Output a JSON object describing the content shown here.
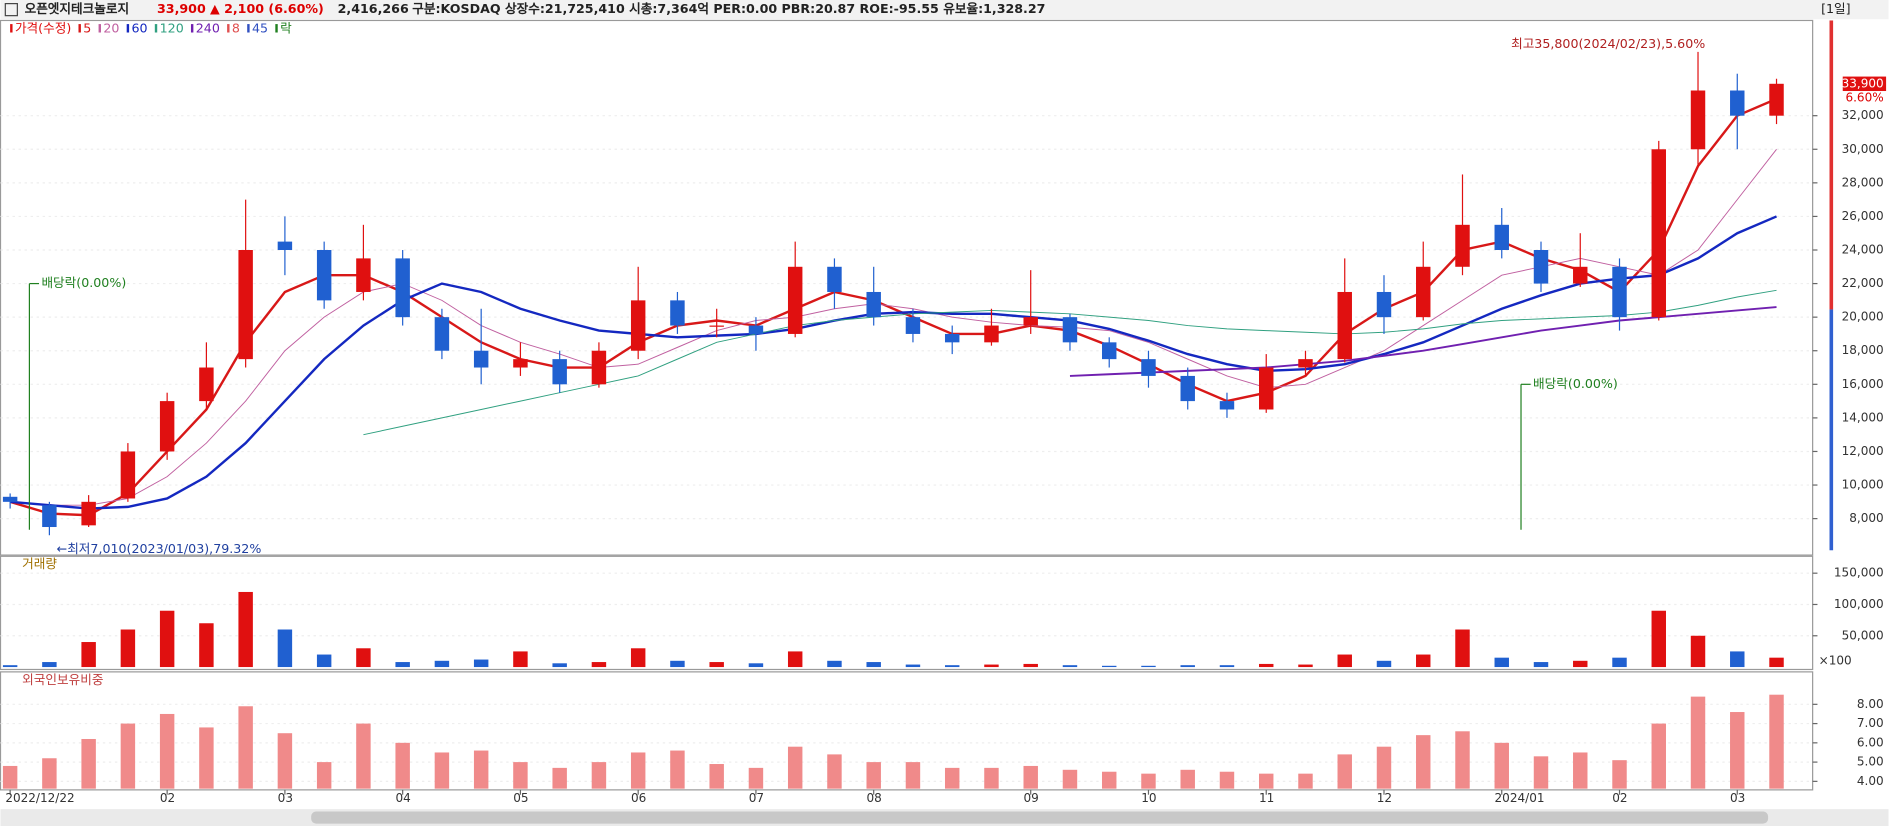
{
  "header": {
    "name": "오픈엣지테크놀로지",
    "price": "33,900",
    "change": "▲ 2,100 (6.60%)",
    "volume": "2,416,266",
    "info": "구분:KOSDAQ 상장수:21,725,410 시총:7,364억 PER:0.00 PBR:20.87 ROE:-95.55 유보율:1,328.27",
    "period": "[1일]"
  },
  "chart_data": {
    "type": "candlestick",
    "price_label": "가격(수정)",
    "extra_legend": [
      {
        "name": "8",
        "color": "#e05050"
      },
      {
        "name": "45",
        "color": "#3050c0"
      },
      {
        "name": "락",
        "color": "#208020"
      }
    ],
    "categories": [
      "2022/12/22",
      null,
      null,
      null,
      "02",
      null,
      null,
      "03",
      null,
      null,
      "04",
      null,
      null,
      "05",
      null,
      null,
      "06",
      null,
      null,
      "07",
      null,
      null,
      "08",
      null,
      null,
      null,
      "09",
      null,
      null,
      "10",
      null,
      null,
      "11",
      null,
      null,
      "12",
      null,
      null,
      "2024/01",
      null,
      null,
      "02",
      null,
      null,
      "03",
      null
    ],
    "open": [
      9300,
      8800,
      7600,
      9200,
      12000,
      15000,
      17500,
      24500,
      24000,
      21500,
      23500,
      20000,
      18000,
      17000,
      17500,
      16000,
      18000,
      21000,
      19500,
      19500,
      19000,
      23000,
      21500,
      20000,
      19000,
      18500,
      19500,
      20000,
      18500,
      17500,
      16500,
      15000,
      14500,
      17000,
      17500,
      21500,
      20000,
      23000,
      25500,
      24000,
      22000,
      23000,
      20000,
      30000,
      33500,
      32000
    ],
    "high": [
      9500,
      9000,
      9400,
      12500,
      15500,
      18500,
      27000,
      26000,
      24500,
      25500,
      24000,
      20500,
      20500,
      18500,
      18000,
      18500,
      23000,
      21500,
      20500,
      20000,
      24500,
      23500,
      23000,
      20500,
      19500,
      20500,
      22800,
      20200,
      18800,
      18000,
      17000,
      15500,
      17800,
      18000,
      23500,
      22500,
      24500,
      28500,
      26500,
      24500,
      25000,
      23500,
      30500,
      35800,
      34500,
      34200
    ],
    "low": [
      8600,
      7010,
      7500,
      9000,
      11500,
      14500,
      17000,
      22500,
      20500,
      21000,
      19500,
      17500,
      16000,
      16500,
      15500,
      15800,
      17500,
      19000,
      18800,
      18000,
      18800,
      20500,
      19500,
      18500,
      17800,
      18300,
      19000,
      18000,
      17000,
      15800,
      14500,
      14000,
      14300,
      16500,
      17300,
      19000,
      19800,
      22500,
      23500,
      21500,
      21800,
      19200,
      19800,
      29000,
      30000,
      31500
    ],
    "close": [
      9000,
      7500,
      9000,
      12000,
      15000,
      17000,
      24000,
      24000,
      21000,
      23500,
      20000,
      18000,
      17000,
      17500,
      16000,
      18000,
      21000,
      19500,
      19500,
      19000,
      23000,
      21500,
      20000,
      19000,
      18500,
      19500,
      20000,
      18500,
      17500,
      16500,
      15000,
      14500,
      17000,
      17500,
      21500,
      20000,
      23000,
      25500,
      24000,
      22000,
      23000,
      20000,
      30000,
      33500,
      32000,
      33900
    ],
    "series": [
      {
        "name": "5",
        "color": "#d81818",
        "width": 2,
        "values": [
          9000,
          8300,
          8200,
          9500,
          12000,
          14500,
          18500,
          21500,
          22500,
          22500,
          21500,
          20000,
          18500,
          17500,
          17000,
          17000,
          18500,
          19500,
          19800,
          19500,
          20500,
          21500,
          21000,
          20000,
          19000,
          19000,
          19500,
          19200,
          18300,
          17200,
          16000,
          15000,
          15500,
          16500,
          19000,
          20500,
          21500,
          24000,
          24500,
          23500,
          22800,
          21500,
          24000,
          29000,
          32000,
          33000
        ]
      },
      {
        "name": "20",
        "color": "#c060a0",
        "width": 0.8,
        "values": [
          9000,
          8800,
          8800,
          9200,
          10500,
          12500,
          15000,
          18000,
          20000,
          21500,
          22000,
          21000,
          19500,
          18500,
          17800,
          17000,
          17200,
          18200,
          19200,
          19800,
          20000,
          20500,
          20800,
          20500,
          20000,
          19700,
          19500,
          19400,
          19200,
          18500,
          17500,
          16500,
          15800,
          16000,
          17000,
          18000,
          19500,
          21000,
          22500,
          23000,
          23500,
          23000,
          22500,
          24000,
          27000,
          30000
        ]
      },
      {
        "name": "60",
        "color": "#1428c0",
        "width": 2,
        "values": [
          9000,
          8800,
          8600,
          8700,
          9200,
          10500,
          12500,
          15000,
          17500,
          19500,
          21000,
          22000,
          21500,
          20500,
          19800,
          19200,
          19000,
          18800,
          18900,
          19000,
          19300,
          19800,
          20200,
          20300,
          20200,
          20200,
          20000,
          19800,
          19300,
          18600,
          17800,
          17200,
          16800,
          16900,
          17200,
          17800,
          18500,
          19500,
          20500,
          21300,
          22000,
          22300,
          22500,
          23500,
          25000,
          26000
        ]
      },
      {
        "name": "120",
        "color": "#30a080",
        "width": 0.8,
        "values": [
          null,
          null,
          null,
          null,
          null,
          null,
          null,
          null,
          null,
          13000,
          13500,
          14000,
          14500,
          15000,
          15500,
          16000,
          16500,
          17500,
          18500,
          19000,
          19500,
          19800,
          20000,
          20200,
          20300,
          20400,
          20300,
          20200,
          20000,
          19800,
          19500,
          19300,
          19200,
          19100,
          19000,
          19100,
          19300,
          19600,
          19800,
          19900,
          20000,
          20100,
          20300,
          20700,
          21200,
          21600
        ]
      },
      {
        "name": "240",
        "color": "#7020b0",
        "width": 1.6,
        "values": [
          null,
          null,
          null,
          null,
          null,
          null,
          null,
          null,
          null,
          null,
          null,
          null,
          null,
          null,
          null,
          null,
          null,
          null,
          null,
          null,
          null,
          null,
          null,
          null,
          null,
          null,
          null,
          16500,
          16600,
          16700,
          16800,
          16900,
          17000,
          17200,
          17400,
          17700,
          18000,
          18400,
          18800,
          19200,
          19500,
          19800,
          20000,
          20200,
          20400,
          20600
        ]
      }
    ],
    "up_color": "#e01010",
    "down_color": "#2060d0",
    "ylim": [
      5900,
      37600
    ],
    "yticks": [
      {
        "value": 8000,
        "label": "8,000"
      },
      {
        "value": 10000,
        "label": "10,000"
      },
      {
        "value": 12000,
        "label": "12,000"
      },
      {
        "value": 14000,
        "label": "14,000"
      },
      {
        "value": 16000,
        "label": "16,000"
      },
      {
        "value": 18000,
        "label": "18,000"
      },
      {
        "value": 20000,
        "label": "20,000"
      },
      {
        "value": 22000,
        "label": "22,000"
      },
      {
        "value": 24000,
        "label": "24,000"
      },
      {
        "value": 26000,
        "label": "26,000"
      },
      {
        "value": 28000,
        "label": "28,000"
      },
      {
        "value": 30000,
        "label": "30,000"
      },
      {
        "value": 32000,
        "label": "32,000"
      }
    ],
    "last_label": "33,900",
    "last_change": "6.60%",
    "annotations": [
      {
        "text": "최고35,800(2024/02/23),5.60%",
        "index": 43,
        "value": 35800
      },
      {
        "text": "←최저7,010(2023/01/03),79.32%",
        "index": 1,
        "value": 7010
      },
      {
        "text": "배당락(0.00%)",
        "index": 0,
        "value": 22000
      },
      {
        "text": "배당락(0.00%)",
        "index": 38,
        "value": 16000
      }
    ],
    "volume_title": "거래량",
    "volume_unit": "×100",
    "volume": [
      3000,
      8000,
      40000,
      60000,
      90000,
      70000,
      120000,
      60000,
      20000,
      30000,
      8000,
      10000,
      12000,
      25000,
      6000,
      8000,
      30000,
      10000,
      8000,
      6000,
      25000,
      10000,
      8000,
      4000,
      3000,
      4000,
      5000,
      3000,
      2000,
      2000,
      3000,
      3000,
      5000,
      4000,
      20000,
      10000,
      20000,
      60000,
      15000,
      8000,
      10000,
      15000,
      90000,
      50000,
      25000,
      15000
    ],
    "volume_ylim": [
      0,
      177000
    ],
    "volume_ticks": [
      {
        "value": 50000,
        "label": "50,000"
      },
      {
        "value": 100000,
        "label": "100,000"
      },
      {
        "value": 150000,
        "label": "150,000"
      }
    ],
    "foreign_title": "외국인보유비중",
    "foreign_color": "#f08a8a",
    "foreign": [
      4.8,
      5.2,
      6.2,
      7.0,
      7.5,
      6.8,
      7.9,
      6.5,
      5.0,
      7.0,
      6.0,
      5.5,
      5.6,
      5.0,
      4.7,
      5.0,
      5.5,
      5.6,
      4.9,
      4.7,
      5.8,
      5.4,
      5.0,
      5.0,
      4.7,
      4.7,
      4.8,
      4.6,
      4.5,
      4.4,
      4.6,
      4.5,
      4.4,
      4.4,
      5.4,
      5.8,
      6.4,
      6.6,
      6.0,
      5.3,
      5.5,
      5.1,
      7.0,
      8.4,
      7.6,
      8.5
    ],
    "foreign_ylim": [
      3.62,
      9.56
    ],
    "foreign_ticks": [
      {
        "value": 4,
        "label": "4.00"
      },
      {
        "value": 5,
        "label": "5.00"
      },
      {
        "value": 6,
        "label": "6.00"
      },
      {
        "value": 7,
        "label": "7.00"
      },
      {
        "value": 8,
        "label": "8.00"
      }
    ]
  }
}
